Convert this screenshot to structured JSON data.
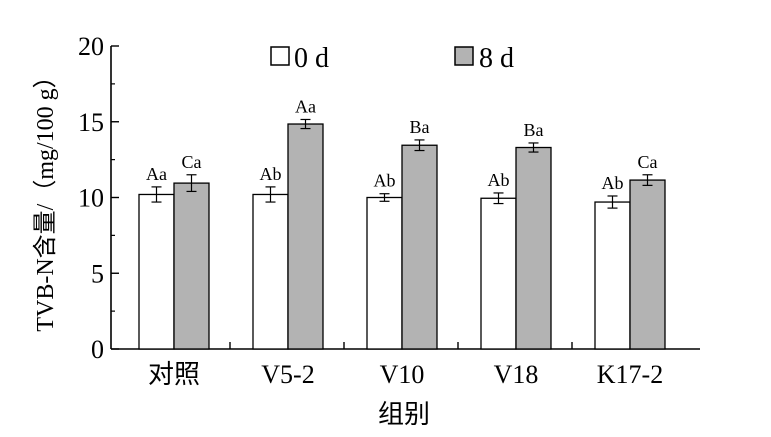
{
  "chart_data": {
    "type": "bar",
    "categories": [
      "对照",
      "V5-2",
      "V10",
      "V18",
      "K17-2"
    ],
    "series": [
      {
        "name": "0 d",
        "values": [
          10.2,
          10.2,
          10.0,
          9.95,
          9.7
        ],
        "errors": [
          0.5,
          0.5,
          0.25,
          0.35,
          0.4
        ],
        "labels": [
          "Aa",
          "Ab",
          "Ab",
          "Ab",
          "Ab"
        ],
        "color": "#ffffff"
      },
      {
        "name": "8 d",
        "values": [
          10.95,
          14.85,
          13.45,
          13.3,
          11.15
        ],
        "errors": [
          0.55,
          0.3,
          0.35,
          0.3,
          0.35
        ],
        "labels": [
          "Ca",
          "Aa",
          "Ba",
          "Ba",
          "Ca"
        ],
        "color": "#b3b3b3"
      }
    ],
    "xlabel": "组别",
    "ylabel": "TVB-N含量/（mg/100 g）",
    "ylim": [
      0,
      20
    ],
    "yticks": [
      0,
      5,
      10,
      15,
      20
    ],
    "grid": false,
    "legend": "top"
  }
}
